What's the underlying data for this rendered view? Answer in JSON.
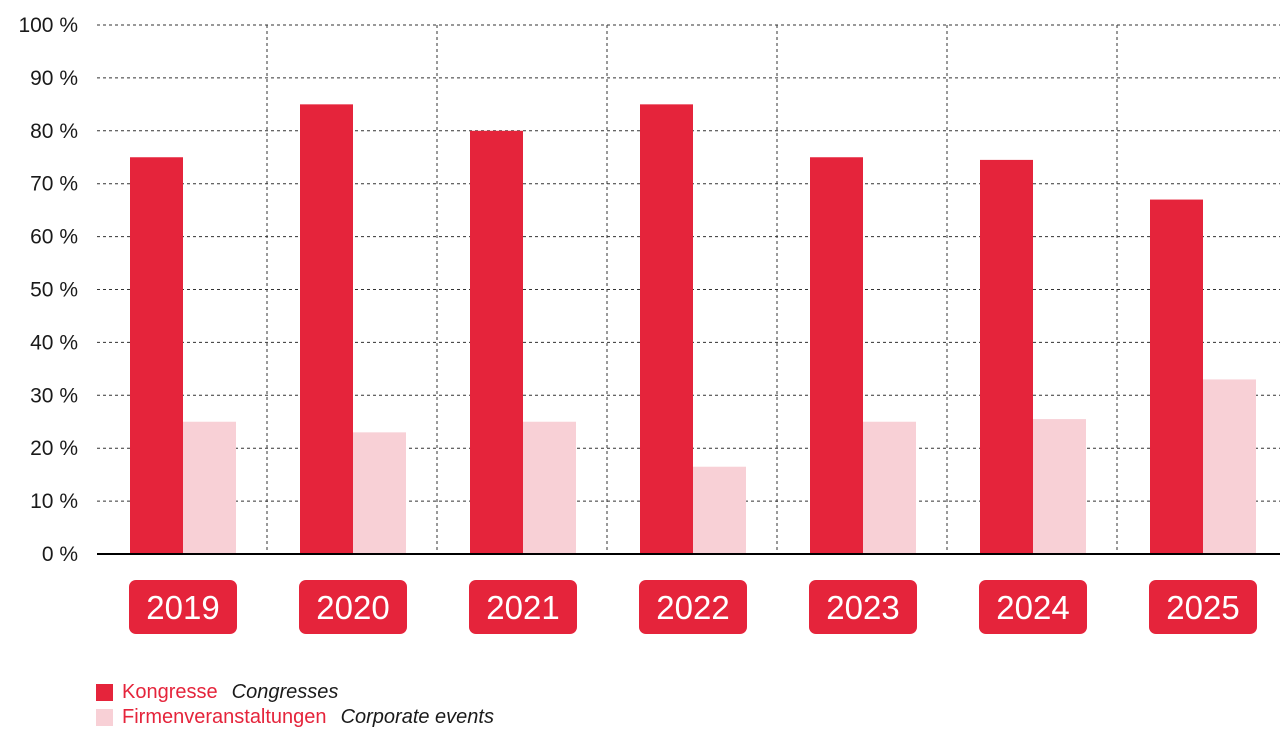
{
  "chart_data": {
    "type": "bar",
    "categories": [
      "2019",
      "2020",
      "2021",
      "2022",
      "2023",
      "2024",
      "2025"
    ],
    "series": [
      {
        "name": "Kongresse",
        "name_en": "Congresses",
        "color": "#e5243b",
        "values": [
          75,
          85,
          80,
          85,
          75,
          74.5,
          67
        ]
      },
      {
        "name": "Firmenveranstaltungen",
        "name_en": "Corporate events",
        "color": "#f8d0d6",
        "values": [
          25,
          23,
          25,
          16.5,
          25,
          25.5,
          33
        ]
      }
    ],
    "ylim": [
      0,
      100
    ],
    "yticks": [
      "0 %",
      "10 %",
      "20 %",
      "30 %",
      "40 %",
      "50 %",
      "60 %",
      "70 %",
      "80 %",
      "90 %",
      "100 %"
    ],
    "grid": true,
    "legend_position": "bottom-left",
    "category_label_color": "#e5243b"
  },
  "legend": {
    "items": [
      {
        "label_de": "Kongresse",
        "label_en": "Congresses"
      },
      {
        "label_de": "Firmenveranstaltungen",
        "label_en": "Corporate events"
      }
    ]
  }
}
